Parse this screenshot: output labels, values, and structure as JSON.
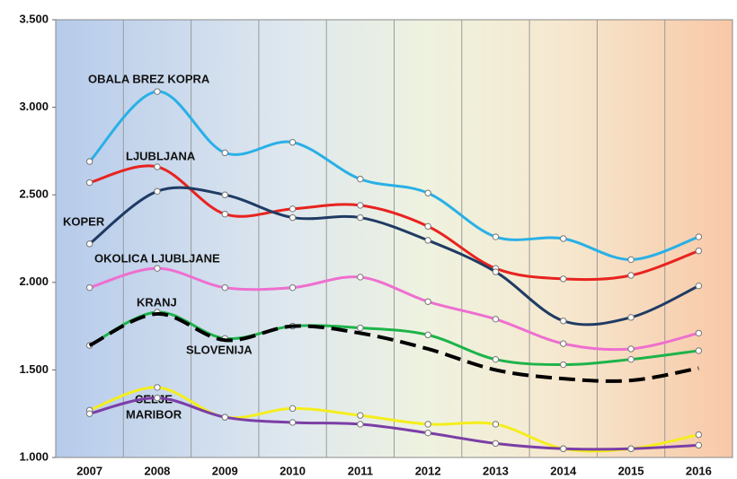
{
  "chart_data": {
    "type": "line",
    "categories": [
      "2007",
      "2008",
      "2009",
      "2010",
      "2011",
      "2012",
      "2013",
      "2014",
      "2015",
      "2016"
    ],
    "series": [
      {
        "name": "OBALA BREZ KOPRA",
        "color": "#29b0e6",
        "values": [
          2690,
          3090,
          2740,
          2800,
          2590,
          2510,
          2260,
          2250,
          2130,
          2260
        ]
      },
      {
        "name": "LJUBLJANA",
        "color": "#e8231f",
        "values": [
          2570,
          2660,
          2390,
          2420,
          2440,
          2320,
          2080,
          2020,
          2040,
          2180
        ]
      },
      {
        "name": "KOPER",
        "color": "#1f3b64",
        "values": [
          2220,
          2520,
          2500,
          2370,
          2370,
          2240,
          2060,
          1780,
          1800,
          1980
        ]
      },
      {
        "name": "OKOLICA LJUBLJANE",
        "color": "#ee6fcf",
        "values": [
          1970,
          2080,
          1970,
          1970,
          2030,
          1890,
          1790,
          1650,
          1620,
          1710
        ]
      },
      {
        "name": "KRANJ",
        "color": "#1db34a",
        "values": [
          1640,
          1830,
          1680,
          1750,
          1740,
          1700,
          1560,
          1530,
          1560,
          1610
        ]
      },
      {
        "name": "SLOVENIJA",
        "color": "#000000",
        "dashed": true,
        "values": [
          1640,
          1820,
          1670,
          1750,
          1710,
          1620,
          1500,
          1450,
          1440,
          1510
        ]
      },
      {
        "name": "CELJE",
        "color": "#f4ee1c",
        "values": [
          1270,
          1400,
          1230,
          1280,
          1240,
          1190,
          1190,
          1050,
          1050,
          1130
        ]
      },
      {
        "name": "MARIBOR",
        "color": "#7b3ea6",
        "values": [
          1250,
          1340,
          1230,
          1200,
          1190,
          1140,
          1080,
          1050,
          1050,
          1070
        ]
      }
    ],
    "ylim": [
      1000,
      3500
    ],
    "yticks": [
      {
        "value": 1000,
        "label": "1.000"
      },
      {
        "value": 1500,
        "label": "1.500"
      },
      {
        "value": 2000,
        "label": "2.000"
      },
      {
        "value": 2500,
        "label": "2.500"
      },
      {
        "value": 3000,
        "label": "3.000"
      },
      {
        "value": 3500,
        "label": "3.500"
      }
    ]
  }
}
